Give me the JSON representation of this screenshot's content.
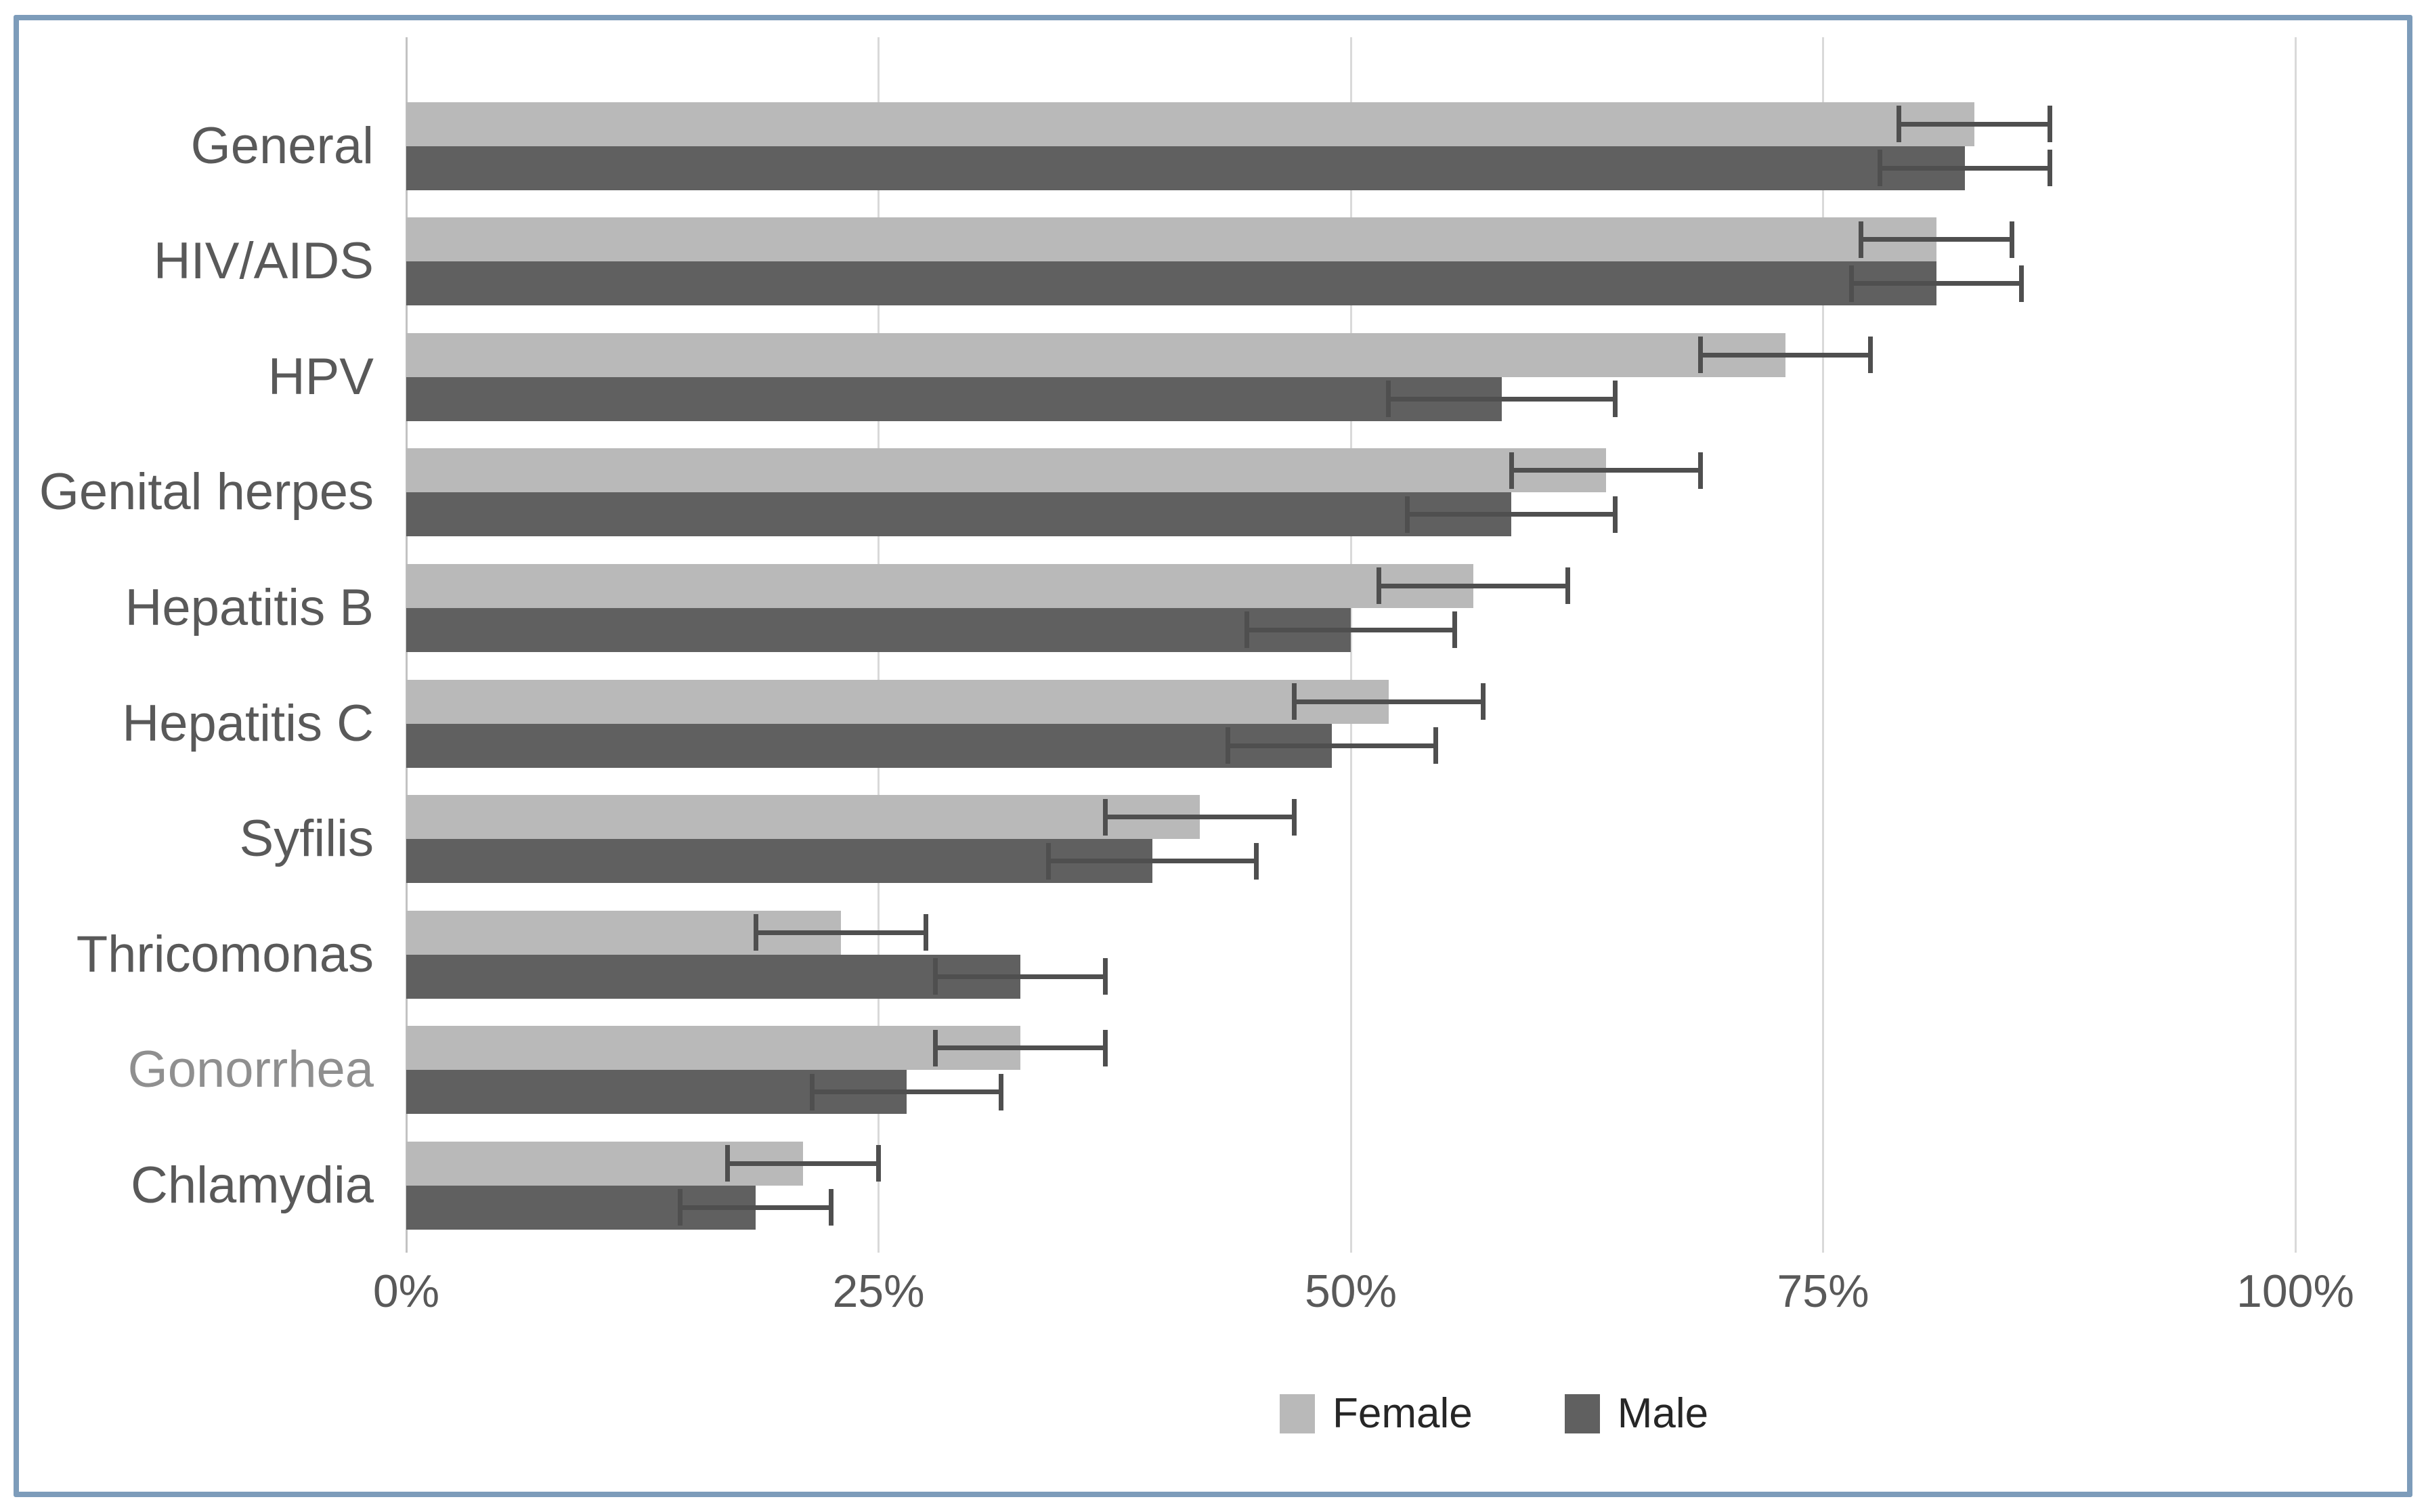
{
  "figure": {
    "border_color": "#7d9cba",
    "background": "#ffffff"
  },
  "chart_data": {
    "type": "bar",
    "orientation": "horizontal",
    "title": "",
    "xlabel": "",
    "ylabel": "",
    "xlim": [
      0,
      100
    ],
    "grid": true,
    "legend_position": "bottom-center",
    "categories": [
      "General",
      "HIV/AIDS",
      "HPV",
      "Genital herpes",
      "Hepatitis B",
      "Hepatitis C",
      "Syfilis",
      "Thricomonas",
      "Gonorrhea",
      "Chlamydia"
    ],
    "category_label_colors": [
      "#595959",
      "#595959",
      "#595959",
      "#595959",
      "#595959",
      "#595959",
      "#595959",
      "#595959",
      "#8f8f8f",
      "#595959"
    ],
    "series": [
      {
        "name": "Female",
        "color": "#b9b9b9",
        "values": [
          83,
          81,
          73,
          63.5,
          56.5,
          52,
          42,
          23,
          32.5,
          21
        ],
        "errors": [
          4,
          4,
          4.5,
          5,
          5,
          5,
          5,
          4.5,
          4.5,
          4
        ]
      },
      {
        "name": "Male",
        "color": "#606060",
        "values": [
          82.5,
          81,
          58,
          58.5,
          50,
          49,
          39.5,
          32.5,
          26.5,
          18.5
        ],
        "errors": [
          4.5,
          4.5,
          6,
          5.5,
          5.5,
          5.5,
          5.5,
          4.5,
          5,
          4
        ]
      }
    ],
    "x_ticks": {
      "labels": [
        "0%",
        "25%",
        "50%",
        "75%",
        "100%"
      ],
      "values": [
        0,
        25,
        50,
        75,
        100
      ]
    },
    "styles": {
      "gridline_color": "#d9d9d9",
      "axis_line_color": "#c3c3c3",
      "error_bar_color": "#4f4f4f",
      "tick_label_color": "#595959"
    }
  }
}
